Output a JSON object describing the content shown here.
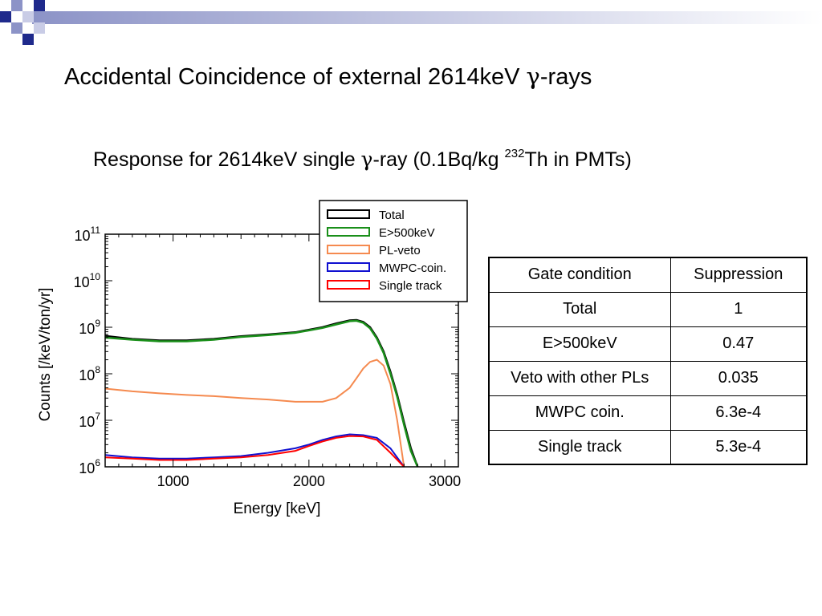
{
  "slide": {
    "title_main": "Accidental Coincidence of external 2614keV ",
    "title_greek": "γ",
    "title_suffix": "-rays",
    "subtitle_main": "Response for 2614keV single ",
    "subtitle_greek": "γ",
    "subtitle_mid": "-ray  (0.1Bq/kg ",
    "subtitle_sup": "232",
    "subtitle_suffix": "Th in PMTs)",
    "deco_colors": [
      "#1f2a8c",
      "#8c93c7",
      "#c9cce6"
    ]
  },
  "chart_data": {
    "type": "line",
    "xlabel": "Energy [keV]",
    "ylabel": "Counts [/keV/ton/yr]",
    "xlim": [
      500,
      3100
    ],
    "ylim": [
      1000000,
      100000000000
    ],
    "y_scale": "log",
    "x_ticks": [
      1000,
      2000,
      3000
    ],
    "x_tick_labels": [
      "1000",
      "2000",
      "3000"
    ],
    "y_tick_base": "10",
    "y_tick_exponents": [
      "6",
      "7",
      "8",
      "9",
      "10",
      "11"
    ],
    "legend_position": "top-right",
    "series": [
      {
        "name": "Total",
        "color": "#000000",
        "x": [
          500,
          700,
          900,
          1100,
          1300,
          1500,
          1700,
          1900,
          2100,
          2200,
          2300,
          2350,
          2400,
          2450,
          2500,
          2550,
          2600,
          2650,
          2700,
          2750,
          2800
        ],
        "y": [
          650000000,
          560000000,
          520000000,
          520000000,
          560000000,
          640000000,
          700000000,
          780000000,
          1000000000,
          1200000000,
          1400000000,
          1430000000,
          1300000000,
          1000000000,
          600000000,
          300000000,
          110000000,
          35000000,
          9000000,
          2500000,
          1000000
        ]
      },
      {
        "name": "E>500keV",
        "color": "#1a8f1a",
        "x": [
          500,
          700,
          900,
          1100,
          1300,
          1500,
          1700,
          1900,
          2100,
          2200,
          2300,
          2350,
          2400,
          2450,
          2500,
          2550,
          2600,
          2650,
          2700,
          2750,
          2800
        ],
        "y": [
          600000000,
          540000000,
          500000000,
          500000000,
          540000000,
          620000000,
          680000000,
          760000000,
          970000000,
          1150000000,
          1350000000,
          1380000000,
          1250000000,
          950000000,
          570000000,
          280000000,
          100000000,
          32000000,
          8000000,
          2200000,
          1000000
        ]
      },
      {
        "name": "PL-veto",
        "color": "#f58a4f",
        "x": [
          500,
          700,
          900,
          1100,
          1300,
          1500,
          1700,
          1900,
          2100,
          2200,
          2300,
          2350,
          2400,
          2450,
          2500,
          2550,
          2600,
          2650,
          2700
        ],
        "y": [
          48000000,
          42000000,
          38000000,
          35000000,
          33000000,
          30000000,
          28000000,
          25000000,
          25000000,
          30000000,
          50000000,
          80000000,
          130000000,
          180000000,
          200000000,
          150000000,
          60000000,
          10000000,
          1000000
        ]
      },
      {
        "name": "MWPC-coin.",
        "color": "#1010d0",
        "x": [
          500,
          700,
          900,
          1100,
          1300,
          1500,
          1700,
          1900,
          2000,
          2100,
          2200,
          2300,
          2400,
          2500,
          2600,
          2700
        ],
        "y": [
          1800000,
          1600000,
          1500000,
          1500000,
          1600000,
          1700000,
          2000000,
          2500000,
          3000000,
          3800000,
          4500000,
          5000000,
          4800000,
          4200000,
          2500000,
          1000000
        ]
      },
      {
        "name": "Single track",
        "color": "#ff0000",
        "x": [
          500,
          700,
          900,
          1100,
          1300,
          1500,
          1700,
          1900,
          2000,
          2100,
          2200,
          2300,
          2400,
          2500,
          2600,
          2700
        ],
        "y": [
          1600000,
          1500000,
          1400000,
          1400000,
          1500000,
          1600000,
          1800000,
          2200000,
          2800000,
          3500000,
          4200000,
          4600000,
          4500000,
          3800000,
          2000000,
          1000000
        ]
      }
    ]
  },
  "table": {
    "headers": [
      "Gate condition",
      "Suppression"
    ],
    "rows": [
      [
        "Total",
        "1"
      ],
      [
        "E>500keV",
        "0.47"
      ],
      [
        "Veto with other PLs",
        "0.035"
      ],
      [
        "MWPC coin.",
        "6.3e-4"
      ],
      [
        "Single track",
        "5.3e-4"
      ]
    ]
  }
}
